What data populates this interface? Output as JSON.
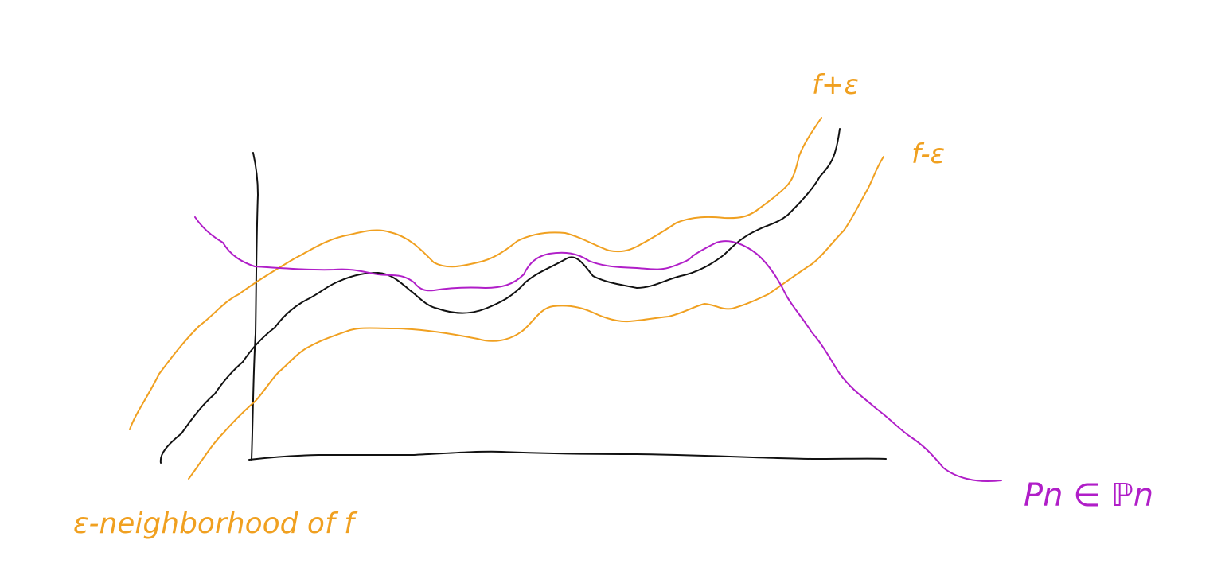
{
  "colors": {
    "background": "#ffffff",
    "function_ink": "#111111",
    "band_ink": "#f0a020",
    "polynomial_ink": "#b01ec8"
  },
  "labels": {
    "upper_band": "f+ε",
    "lower_band": "f-ε",
    "polynomial": "Pn ∈ ℙn",
    "caption": "ε-neighborhood of f"
  }
}
